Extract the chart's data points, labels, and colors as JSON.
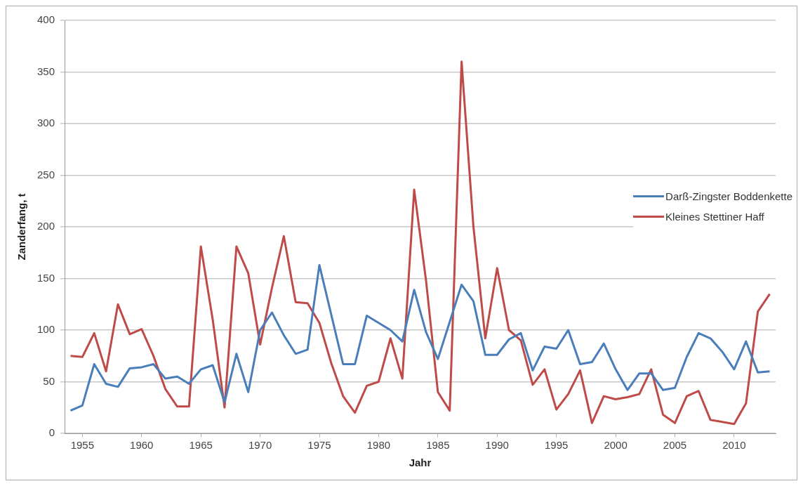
{
  "chart_data": {
    "type": "line",
    "xlabel": "Jahr",
    "ylabel": "Zanderfang, t",
    "x": [
      1954,
      1955,
      1956,
      1957,
      1958,
      1959,
      1960,
      1961,
      1962,
      1963,
      1964,
      1965,
      1966,
      1967,
      1968,
      1969,
      1970,
      1971,
      1972,
      1973,
      1974,
      1975,
      1976,
      1977,
      1978,
      1979,
      1980,
      1981,
      1982,
      1983,
      1984,
      1985,
      1986,
      1987,
      1988,
      1989,
      1990,
      1991,
      1992,
      1993,
      1994,
      1995,
      1996,
      1997,
      1998,
      1999,
      2000,
      2001,
      2002,
      2003,
      2004,
      2005,
      2006,
      2007,
      2008,
      2009,
      2010,
      2011,
      2012,
      2013
    ],
    "series": [
      {
        "name": "Darß-Zingster Boddenkette",
        "color": "#4a7ebb",
        "values": [
          22,
          27,
          67,
          48,
          45,
          63,
          64,
          67,
          53,
          55,
          48,
          62,
          66,
          30,
          77,
          40,
          100,
          117,
          95,
          77,
          81,
          163,
          115,
          67,
          67,
          114,
          107,
          100,
          89,
          139,
          98,
          72,
          108,
          144,
          128,
          76,
          76,
          91,
          97,
          61,
          84,
          82,
          100,
          67,
          69,
          87,
          62,
          42,
          58,
          58,
          42,
          44,
          74,
          97,
          92,
          79,
          62,
          89,
          59,
          60
        ]
      },
      {
        "name": "Kleines Stettiner Haff",
        "color": "#be4b48",
        "values": [
          75,
          74,
          97,
          60,
          125,
          96,
          101,
          75,
          43,
          26,
          26,
          181,
          110,
          25,
          181,
          155,
          86,
          141,
          191,
          127,
          126,
          107,
          68,
          36,
          20,
          46,
          50,
          92,
          53,
          236,
          148,
          40,
          22,
          360,
          200,
          92,
          160,
          100,
          90,
          47,
          62,
          23,
          38,
          61,
          10,
          36,
          33,
          35,
          38,
          62,
          18,
          10,
          36,
          41,
          13,
          11,
          9,
          29,
          118,
          135
        ]
      }
    ],
    "xlim": [
      1953.5,
      2013.5
    ],
    "xticks": [
      1955,
      1960,
      1965,
      1970,
      1975,
      1980,
      1985,
      1990,
      1995,
      2000,
      2005,
      2010
    ],
    "ylim": [
      0,
      400
    ],
    "yticks": [
      0,
      50,
      100,
      150,
      200,
      250,
      300,
      350,
      400
    ],
    "grid": "y",
    "legend": "right",
    "marker": "none",
    "line_style": "solid"
  }
}
